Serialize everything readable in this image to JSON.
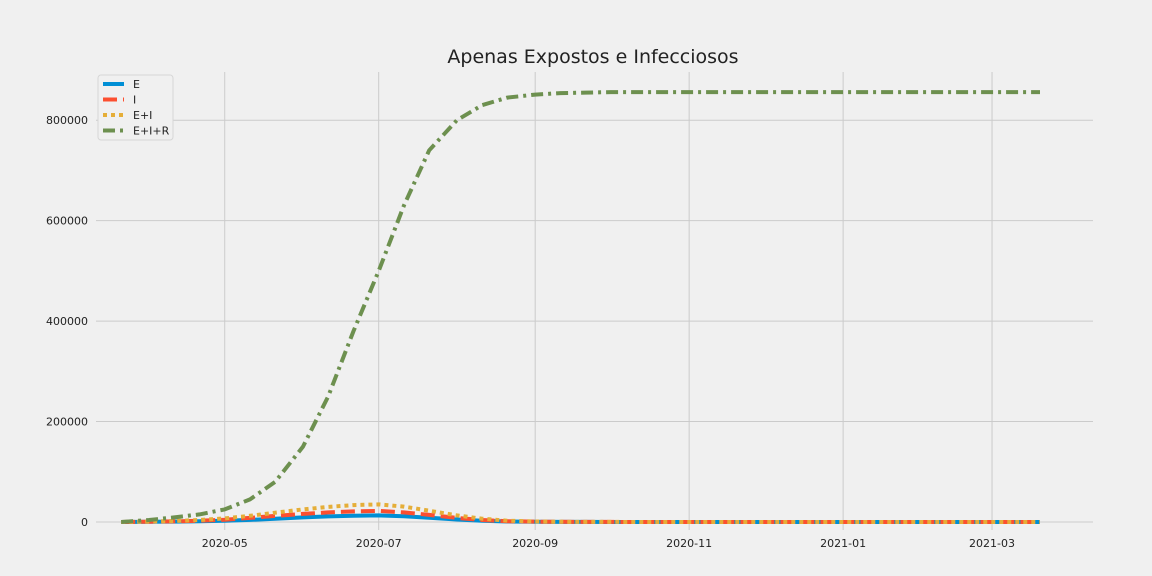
{
  "chart_data": {
    "type": "line",
    "title": "Apenas Expostos e Infecciosos",
    "xlabel": "",
    "ylabel": "",
    "xlim": [
      "2020-03-11",
      "2021-04-10"
    ],
    "ylim": [
      -16000,
      896000
    ],
    "grid": true,
    "legend_position": "top-left",
    "x_ticks": [
      "2020-05",
      "2020-07",
      "2020-09",
      "2020-11",
      "2021-01",
      "2021-03"
    ],
    "y_ticks": [
      "0",
      "200000",
      "400000",
      "600000",
      "800000"
    ],
    "x": [
      "2020-03-21",
      "2020-04-01",
      "2020-04-11",
      "2020-04-21",
      "2020-05-01",
      "2020-05-11",
      "2020-05-21",
      "2020-06-01",
      "2020-06-11",
      "2020-06-21",
      "2020-07-01",
      "2020-07-11",
      "2020-07-21",
      "2020-08-01",
      "2020-08-11",
      "2020-08-21",
      "2020-09-01",
      "2020-09-11",
      "2020-09-21",
      "2020-10-01",
      "2020-10-11",
      "2020-10-21",
      "2020-11-01",
      "2020-11-21",
      "2020-12-11",
      "2021-01-01",
      "2021-01-21",
      "2021-02-11",
      "2021-03-01",
      "2021-03-20"
    ],
    "series": [
      {
        "name": "E",
        "color": "#008fd5",
        "style": "solid",
        "values": [
          0,
          300,
          700,
          1400,
          2500,
          4200,
          6500,
          9000,
          11000,
          12500,
          13000,
          11500,
          8500,
          5000,
          2500,
          1000,
          400,
          150,
          60,
          20,
          10,
          0,
          0,
          0,
          0,
          0,
          0,
          0,
          0,
          0
        ]
      },
      {
        "name": "I",
        "color": "#fc4f30",
        "style": "dashed",
        "values": [
          0,
          500,
          1200,
          2500,
          4500,
          8000,
          12000,
          16000,
          19000,
          21000,
          22000,
          19000,
          14000,
          8000,
          4000,
          1500,
          600,
          250,
          100,
          40,
          15,
          0,
          0,
          0,
          0,
          0,
          0,
          0,
          0,
          0
        ]
      },
      {
        "name": "E+I",
        "color": "#e5ae38",
        "style": "dotted",
        "values": [
          0,
          800,
          1900,
          3900,
          7000,
          12200,
          18500,
          25000,
          30000,
          33500,
          35000,
          30500,
          22500,
          13000,
          6500,
          2500,
          1000,
          400,
          160,
          60,
          25,
          0,
          0,
          0,
          0,
          0,
          0,
          0,
          0,
          0
        ]
      },
      {
        "name": "E+I+R",
        "color": "#6d904f",
        "style": "dashdot",
        "values": [
          0,
          4000,
          9000,
          15000,
          25000,
          45000,
          80000,
          150000,
          250000,
          380000,
          500000,
          630000,
          740000,
          800000,
          830000,
          845000,
          851000,
          854000,
          855000,
          856000,
          856000,
          856000,
          856000,
          856000,
          856000,
          856000,
          856000,
          856000,
          856000,
          856000
        ]
      }
    ]
  }
}
